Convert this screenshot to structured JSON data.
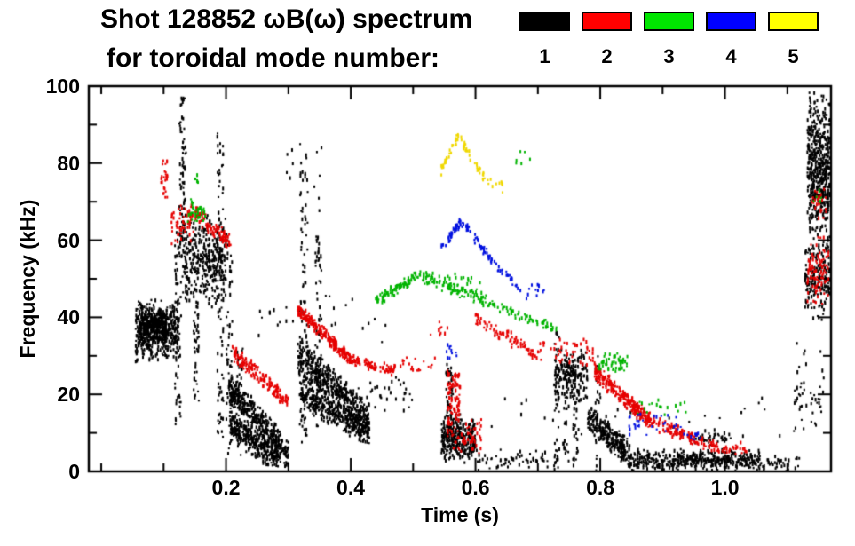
{
  "chart_data": {
    "type": "scatter",
    "title": "Shot 128852 ωB(ω) spectrum",
    "subtitle": "for toroidal mode number:",
    "xlabel": "Time (s)",
    "ylabel": "Frequency (kHz)",
    "xlim": [
      -0.02,
      1.17
    ],
    "ylim": [
      0,
      100
    ],
    "grid": false,
    "legend_position": "top-right",
    "x_ticks": [
      {
        "v": 0.2,
        "label": "0.2"
      },
      {
        "v": 0.4,
        "label": "0.4"
      },
      {
        "v": 0.6,
        "label": "0.6"
      },
      {
        "v": 0.8,
        "label": "0.8"
      },
      {
        "v": 1.0,
        "label": "1.0"
      }
    ],
    "x_minor_ticks": [
      0.0,
      0.1,
      0.3,
      0.5,
      0.7,
      0.9,
      1.1
    ],
    "y_ticks": [
      {
        "v": 0,
        "label": "0"
      },
      {
        "v": 20,
        "label": "20"
      },
      {
        "v": 40,
        "label": "40"
      },
      {
        "v": 60,
        "label": "60"
      },
      {
        "v": 80,
        "label": "80"
      },
      {
        "v": 100,
        "label": "100"
      }
    ],
    "y_minor_ticks": [
      10,
      30,
      50,
      70,
      90
    ],
    "modes": [
      {
        "label": "1",
        "legend_color": "#000000",
        "point_color": "#000000"
      },
      {
        "label": "2",
        "legend_color": "#ff0000",
        "point_color": "#e60000"
      },
      {
        "label": "3",
        "legend_color": "#00e600",
        "point_color": "#00b400"
      },
      {
        "label": "4",
        "legend_color": "#0000ff",
        "point_color": "#0010e0"
      },
      {
        "label": "5",
        "legend_color": "#ffff00",
        "point_color": "#f0d800"
      }
    ],
    "clusters": [
      {
        "m": 1,
        "k": "b",
        "t": [
          0.055,
          0.125
        ],
        "f": [
          28,
          46
        ],
        "n": 500
      },
      {
        "m": 1,
        "k": "b",
        "t": [
          0.06,
          0.105
        ],
        "f": [
          33,
          43
        ],
        "n": 250
      },
      {
        "m": 1,
        "k": "v",
        "t": [
          0.118,
          0.128
        ],
        "f": [
          12,
          62
        ],
        "n": 60
      },
      {
        "m": 1,
        "k": "v",
        "t": [
          0.125,
          0.136
        ],
        "f": [
          55,
          97
        ],
        "n": 80
      },
      {
        "m": 1,
        "k": "b",
        "t": [
          0.13,
          0.2
        ],
        "f": [
          42,
          68
        ],
        "n": 360
      },
      {
        "m": 1,
        "k": "v",
        "t": [
          0.148,
          0.157
        ],
        "f": [
          18,
          44
        ],
        "n": 40
      },
      {
        "m": 1,
        "k": "v",
        "t": [
          0.186,
          0.196
        ],
        "f": [
          8,
          88
        ],
        "n": 90
      },
      {
        "m": 1,
        "k": "v",
        "t": [
          0.2,
          0.21
        ],
        "f": [
          4,
          62
        ],
        "n": 55
      },
      {
        "m": 1,
        "k": "c",
        "t": [
          0.205,
          0.3
        ],
        "f": [
          22,
          4
        ],
        "n": 420,
        "j": 5
      },
      {
        "m": 1,
        "k": "c",
        "t": [
          0.205,
          0.285
        ],
        "f": [
          12,
          3
        ],
        "n": 300,
        "j": 4
      },
      {
        "m": 1,
        "k": "v",
        "t": [
          0.218,
          0.227
        ],
        "f": [
          4,
          32
        ],
        "n": 40
      },
      {
        "m": 1,
        "k": "v",
        "t": [
          0.318,
          0.331
        ],
        "f": [
          6,
          86
        ],
        "n": 90
      },
      {
        "m": 1,
        "k": "v",
        "t": [
          0.343,
          0.353
        ],
        "f": [
          10,
          72
        ],
        "n": 55
      },
      {
        "m": 1,
        "k": "c",
        "t": [
          0.315,
          0.43
        ],
        "f": [
          30,
          13
        ],
        "n": 520,
        "j": 6
      },
      {
        "m": 1,
        "k": "c",
        "t": [
          0.32,
          0.43
        ],
        "f": [
          20,
          10
        ],
        "n": 330,
        "j": 4
      },
      {
        "m": 1,
        "k": "b",
        "t": [
          0.295,
          0.36
        ],
        "f": [
          70,
          88
        ],
        "n": 10
      },
      {
        "m": 1,
        "k": "b",
        "t": [
          0.43,
          0.5
        ],
        "f": [
          14,
          25
        ],
        "n": 28
      },
      {
        "m": 1,
        "k": "b",
        "t": [
          0.25,
          0.47
        ],
        "f": [
          32,
          48
        ],
        "n": 26
      },
      {
        "m": 1,
        "k": "b",
        "t": [
          0.545,
          0.6
        ],
        "f": [
          2,
          15
        ],
        "n": 300
      },
      {
        "m": 1,
        "k": "v",
        "t": [
          0.553,
          0.564
        ],
        "f": [
          5,
          28
        ],
        "n": 55
      },
      {
        "m": 1,
        "k": "b",
        "t": [
          0.6,
          0.72
        ],
        "f": [
          0,
          6
        ],
        "n": 60
      },
      {
        "m": 1,
        "k": "v",
        "t": [
          0.726,
          0.735
        ],
        "f": [
          0,
          36
        ],
        "n": 45
      },
      {
        "m": 1,
        "k": "v",
        "t": [
          0.74,
          0.75
        ],
        "f": [
          2,
          31
        ],
        "n": 40
      },
      {
        "m": 1,
        "k": "b",
        "t": [
          0.728,
          0.78
        ],
        "f": [
          17,
          32
        ],
        "n": 170
      },
      {
        "m": 1,
        "k": "v",
        "t": [
          0.756,
          0.766
        ],
        "f": [
          0,
          26
        ],
        "n": 35
      },
      {
        "m": 1,
        "k": "c",
        "t": [
          0.78,
          0.85
        ],
        "f": [
          14,
          4
        ],
        "n": 280,
        "j": 4
      },
      {
        "m": 1,
        "k": "v",
        "t": [
          0.792,
          0.801
        ],
        "f": [
          0,
          30
        ],
        "n": 30
      },
      {
        "m": 1,
        "k": "b",
        "t": [
          0.85,
          1.06
        ],
        "f": [
          0,
          6
        ],
        "n": 430
      },
      {
        "m": 1,
        "k": "b",
        "t": [
          0.95,
          1.01
        ],
        "f": [
          6,
          11
        ],
        "n": 40
      },
      {
        "m": 1,
        "k": "b",
        "t": [
          0.6,
          1.1
        ],
        "f": [
          8,
          20
        ],
        "n": 26
      },
      {
        "m": 1,
        "k": "b",
        "t": [
          1.06,
          1.12
        ],
        "f": [
          0,
          4
        ],
        "n": 40
      },
      {
        "m": 1,
        "k": "b",
        "t": [
          1.132,
          1.168
        ],
        "f": [
          60,
          100
        ],
        "n": 480
      },
      {
        "m": 1,
        "k": "b",
        "t": [
          1.128,
          1.168
        ],
        "f": [
          38,
          62
        ],
        "n": 190
      },
      {
        "m": 1,
        "k": "b",
        "t": [
          1.11,
          1.16
        ],
        "f": [
          5,
          35
        ],
        "n": 50
      },
      {
        "m": 2,
        "k": "v",
        "t": [
          0.096,
          0.107
        ],
        "f": [
          70,
          82
        ],
        "n": 26
      },
      {
        "m": 2,
        "k": "b",
        "t": [
          0.112,
          0.148
        ],
        "f": [
          58,
          70
        ],
        "n": 60
      },
      {
        "m": 2,
        "k": "c",
        "t": [
          0.15,
          0.21
        ],
        "f": [
          67,
          59
        ],
        "n": 95,
        "j": 2.5
      },
      {
        "m": 2,
        "k": "c",
        "t": [
          0.21,
          0.3
        ],
        "f": [
          31,
          18
        ],
        "n": 170,
        "j": 2.5
      },
      {
        "m": 2,
        "k": "c",
        "t": [
          0.315,
          0.4
        ],
        "f": [
          42,
          29
        ],
        "n": 230,
        "j": 2
      },
      {
        "m": 2,
        "k": "c",
        "t": [
          0.4,
          0.47
        ],
        "f": [
          29,
          26
        ],
        "n": 85,
        "j": 1.5
      },
      {
        "m": 2,
        "k": "b",
        "t": [
          0.47,
          0.535
        ],
        "f": [
          25,
          30
        ],
        "n": 20
      },
      {
        "m": 2,
        "k": "b",
        "t": [
          0.52,
          0.555
        ],
        "f": [
          34,
          40
        ],
        "n": 10
      },
      {
        "m": 2,
        "k": "v",
        "t": [
          0.555,
          0.576
        ],
        "f": [
          12,
          26
        ],
        "n": 95
      },
      {
        "m": 2,
        "k": "b",
        "t": [
          0.555,
          0.61
        ],
        "f": [
          4,
          14
        ],
        "n": 65
      },
      {
        "m": 2,
        "k": "c",
        "t": [
          0.6,
          0.7
        ],
        "f": [
          40,
          30
        ],
        "n": 75,
        "j": 2
      },
      {
        "m": 2,
        "k": "b",
        "t": [
          0.7,
          0.79
        ],
        "f": [
          27,
          35
        ],
        "n": 50
      },
      {
        "m": 2,
        "k": "c",
        "t": [
          0.79,
          0.88
        ],
        "f": [
          26,
          13
        ],
        "n": 270,
        "j": 2.5
      },
      {
        "m": 2,
        "k": "c",
        "t": [
          0.88,
          0.99
        ],
        "f": [
          13,
          6
        ],
        "n": 130,
        "j": 2
      },
      {
        "m": 2,
        "k": "b",
        "t": [
          0.99,
          1.04
        ],
        "f": [
          4,
          8
        ],
        "n": 25
      },
      {
        "m": 2,
        "k": "b",
        "t": [
          1.132,
          1.166
        ],
        "f": [
          42,
          62
        ],
        "n": 95
      },
      {
        "m": 2,
        "k": "b",
        "t": [
          1.138,
          1.162
        ],
        "f": [
          64,
          74
        ],
        "n": 25
      },
      {
        "m": 3,
        "k": "b",
        "t": [
          0.138,
          0.168
        ],
        "f": [
          63,
          71
        ],
        "n": 36
      },
      {
        "m": 3,
        "k": "b",
        "t": [
          0.15,
          0.16
        ],
        "f": [
          74,
          78
        ],
        "n": 5
      },
      {
        "m": 3,
        "k": "c",
        "t": [
          0.44,
          0.51
        ],
        "f": [
          44,
          51
        ],
        "n": 90,
        "j": 1.5
      },
      {
        "m": 3,
        "k": "c",
        "t": [
          0.51,
          0.63
        ],
        "f": [
          51,
          43
        ],
        "n": 115,
        "j": 2
      },
      {
        "m": 3,
        "k": "c",
        "t": [
          0.63,
          0.73
        ],
        "f": [
          43,
          37
        ],
        "n": 60,
        "j": 1.5
      },
      {
        "m": 3,
        "k": "b",
        "t": [
          0.795,
          0.845
        ],
        "f": [
          25,
          31
        ],
        "n": 55
      },
      {
        "m": 3,
        "k": "b",
        "t": [
          0.86,
          0.94
        ],
        "f": [
          14,
          20
        ],
        "n": 18
      },
      {
        "m": 3,
        "k": "b",
        "t": [
          0.665,
          0.69
        ],
        "f": [
          79,
          84
        ],
        "n": 6
      },
      {
        "m": 3,
        "k": "b",
        "t": [
          1.14,
          1.158
        ],
        "f": [
          68,
          74
        ],
        "n": 5
      },
      {
        "m": 3,
        "k": "b",
        "t": [
          0.55,
          0.61
        ],
        "f": [
          46,
          52
        ],
        "n": 20
      },
      {
        "m": 4,
        "k": "c",
        "t": [
          0.545,
          0.578
        ],
        "f": [
          58,
          65
        ],
        "n": 38,
        "j": 1.5
      },
      {
        "m": 4,
        "k": "c",
        "t": [
          0.578,
          0.625
        ],
        "f": [
          65,
          55
        ],
        "n": 42,
        "j": 1.5
      },
      {
        "m": 4,
        "k": "c",
        "t": [
          0.625,
          0.67
        ],
        "f": [
          55,
          48
        ],
        "n": 26,
        "j": 1.5
      },
      {
        "m": 4,
        "k": "b",
        "t": [
          0.67,
          0.71
        ],
        "f": [
          44,
          50
        ],
        "n": 12
      },
      {
        "m": 4,
        "k": "b",
        "t": [
          0.553,
          0.57
        ],
        "f": [
          29,
          33
        ],
        "n": 10
      },
      {
        "m": 4,
        "k": "b",
        "t": [
          0.84,
          0.93
        ],
        "f": [
          9,
          16
        ],
        "n": 30
      },
      {
        "m": 4,
        "k": "b",
        "t": [
          0.93,
          0.96
        ],
        "f": [
          7,
          11
        ],
        "n": 10
      },
      {
        "m": 5,
        "k": "c",
        "t": [
          0.545,
          0.572
        ],
        "f": [
          78,
          87
        ],
        "n": 32,
        "j": 1.5
      },
      {
        "m": 5,
        "k": "c",
        "t": [
          0.572,
          0.615
        ],
        "f": [
          87,
          76
        ],
        "n": 36,
        "j": 1.5
      },
      {
        "m": 5,
        "k": "b",
        "t": [
          0.615,
          0.645
        ],
        "f": [
          72,
          77
        ],
        "n": 10
      }
    ]
  }
}
